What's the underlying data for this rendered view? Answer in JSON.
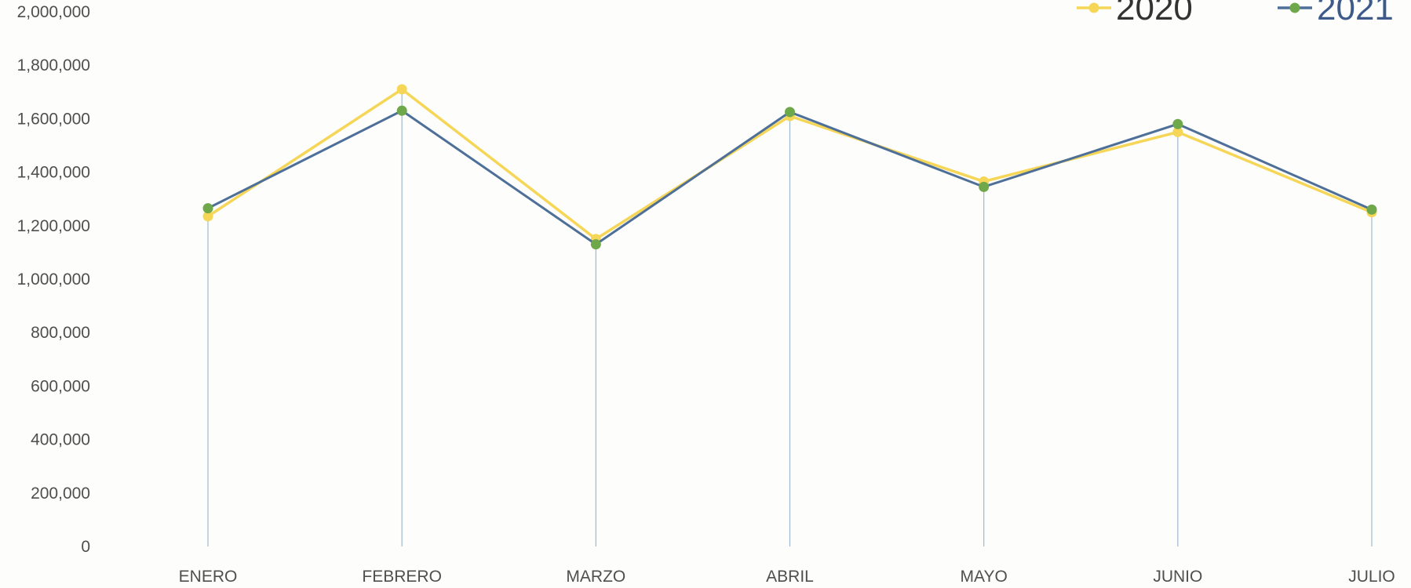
{
  "colors": {
    "series_2020": "#f5d657",
    "series_2021": "#4e6f98",
    "marker_2021": "#6ea84a",
    "drop_line": "#9fb8cf",
    "tick_text": "#4f4f4f",
    "legend_text_2020": "#333333",
    "legend_text_2021": "#3d5a8a"
  },
  "chart_data": {
    "type": "line",
    "categories": [
      "ENERO",
      "FEBRERO",
      "MARZO",
      "ABRIL",
      "MAYO",
      "JUNIO",
      "JULIO"
    ],
    "series": [
      {
        "name": "2020",
        "values": [
          1235000,
          1710000,
          1150000,
          1610000,
          1365000,
          1550000,
          1250000
        ]
      },
      {
        "name": "2021",
        "values": [
          1265000,
          1630000,
          1130000,
          1625000,
          1345000,
          1580000,
          1260000
        ]
      }
    ],
    "y_ticks": [
      "0",
      "200,000",
      "400,000",
      "600,000",
      "800,000",
      "1,000,000",
      "1,200,000",
      "1,400,000",
      "1,600,000",
      "1,800,000",
      "2,000,000"
    ],
    "ylim": [
      0,
      2000000
    ],
    "title": "",
    "xlabel": "",
    "ylabel": "",
    "legend_position": "top-right",
    "grid": false,
    "drop_lines": true
  }
}
